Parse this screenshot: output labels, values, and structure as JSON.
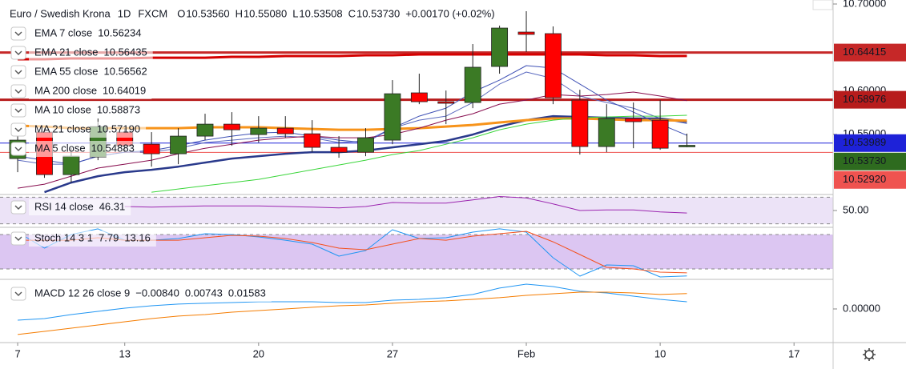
{
  "chart_data": [
    {
      "type": "candlestick",
      "title": "Euro / Swedish Krona",
      "interval": "1D",
      "source": "FXCM",
      "ohlc_legend": [
        {
          "key": "O",
          "value": "10.53560"
        },
        {
          "key": "H",
          "value": "10.55080"
        },
        {
          "key": "L",
          "value": "10.53508"
        },
        {
          "key": "C",
          "value": "10.53730"
        }
      ],
      "change": "+0.00170 (+0.02%)",
      "x": [
        0,
        1,
        2,
        3,
        4,
        5,
        6,
        7,
        8,
        9,
        10,
        11,
        12,
        13,
        14,
        15,
        16,
        17,
        18,
        19,
        20,
        21,
        22,
        23,
        24,
        25
      ],
      "open": [
        10.5221,
        10.5525,
        10.5036,
        10.5239,
        10.5525,
        10.5386,
        10.5276,
        10.5479,
        10.5617,
        10.5497,
        10.5571,
        10.5506,
        10.535,
        10.5294,
        10.5433,
        10.5977,
        10.5875,
        10.5866,
        10.6281,
        10.6677,
        10.6659,
        10.5894,
        10.5359,
        10.5682,
        10.5663,
        10.5356
      ],
      "high": [
        10.5571,
        10.5571,
        10.534,
        10.5682,
        10.5571,
        10.5525,
        10.5571,
        10.5737,
        10.5755,
        10.5709,
        10.5709,
        10.5663,
        10.5479,
        10.5571,
        10.6124,
        10.6198,
        10.6004,
        10.6539,
        10.6751,
        10.6917,
        10.6742,
        10.6013,
        10.5847,
        10.5866,
        10.5894,
        10.5508
      ],
      "low": [
        10.5064,
        10.4999,
        10.4944,
        10.5202,
        10.5294,
        10.5128,
        10.5156,
        10.5433,
        10.5368,
        10.5405,
        10.546,
        10.5294,
        10.523,
        10.5248,
        10.5386,
        10.5847,
        10.5617,
        10.5801,
        10.6198,
        10.6447,
        10.5847,
        10.5267,
        10.5294,
        10.534,
        10.5322,
        10.53508
      ],
      "close": [
        10.5433,
        10.5036,
        10.5248,
        10.5589,
        10.5368,
        10.5276,
        10.5479,
        10.5617,
        10.5552,
        10.5571,
        10.5506,
        10.535,
        10.5294,
        10.546,
        10.5967,
        10.5875,
        10.5857,
        10.6272,
        10.6723,
        10.665,
        10.5921,
        10.5359,
        10.5682,
        10.5645,
        10.534,
        10.5373
      ],
      "up_color": "#3b7a25",
      "down_color": "#ff0000",
      "series": [
        {
          "name": "EMA 7 close",
          "color": "#5c6bc0",
          "width": 1,
          "values": [
            10.5202,
            10.5156,
            10.5156,
            10.5248,
            10.5294,
            10.5294,
            10.534,
            10.5405,
            10.5433,
            10.546,
            10.5479,
            10.546,
            10.5405,
            10.5424,
            10.5571,
            10.5663,
            10.5709,
            10.5866,
            10.6078,
            10.6217,
            10.6143,
            10.594,
            10.5866,
            10.5801,
            10.5682,
            10.56234
          ]
        },
        {
          "name": "EMA 21 close",
          "color": "#2a3a8c",
          "width": 2.5,
          "values": [
            null,
            10.4834,
            10.4944,
            10.5018,
            10.5064,
            10.5092,
            10.5128,
            10.5175,
            10.5221,
            10.5248,
            10.5276,
            10.5294,
            10.5294,
            10.5313,
            10.535,
            10.5386,
            10.5424,
            10.5497,
            10.5589,
            10.5663,
            10.5709,
            10.57,
            10.5691,
            10.5682,
            10.5682,
            10.56435
          ]
        },
        {
          "name": "EMA 55 close",
          "color": "#f7931a",
          "width": 3,
          "values": [
            10.5599,
            10.5589,
            10.5571,
            10.5571,
            10.5571,
            10.5571,
            10.5571,
            10.5581,
            10.5581,
            10.5581,
            10.5571,
            10.5562,
            10.5552,
            10.5552,
            10.5562,
            10.5571,
            10.5589,
            10.5608,
            10.5636,
            10.5663,
            10.5682,
            10.5682,
            10.5673,
            10.5663,
            10.5663,
            10.56562
          ]
        },
        {
          "name": "MA 200 close",
          "color": "#d50000",
          "width": 3,
          "values": [
            10.6364,
            10.6364,
            10.6373,
            10.6373,
            10.6373,
            10.6382,
            10.6382,
            10.6382,
            10.6392,
            10.6392,
            10.6401,
            10.6401,
            10.6401,
            10.641,
            10.641,
            10.6419,
            10.6419,
            10.6419,
            10.6419,
            10.6419,
            10.6419,
            10.6419,
            10.641,
            10.641,
            10.6401,
            10.64019
          ]
        },
        {
          "name": "MA 10 close",
          "color": "#880e4f",
          "width": 1,
          "values": [
            10.488,
            10.4926,
            10.5018,
            10.5111,
            10.5156,
            10.5202,
            10.5276,
            10.534,
            10.5386,
            10.5433,
            10.546,
            10.5479,
            10.546,
            10.546,
            10.5497,
            10.5571,
            10.5663,
            10.5737,
            10.5847,
            10.5894,
            10.5958,
            10.594,
            10.5958,
            10.5986,
            10.594,
            10.58873
          ]
        },
        {
          "name": "MA 21 close",
          "color": "#3cd63c",
          "width": 1,
          "legend_label": "10.57190",
          "values": [
            null,
            null,
            null,
            null,
            null,
            10.4834,
            10.4871,
            10.4908,
            10.4944,
            10.4981,
            10.5036,
            10.5092,
            10.5147,
            10.5202,
            10.5267,
            10.5313,
            10.5386,
            10.546,
            10.5552,
            10.5617,
            10.5663,
            10.5691,
            10.57,
            10.5709,
            10.5709,
            10.5719
          ]
        },
        {
          "name": "MA 5 close",
          "color": "#3f51b5",
          "width": 1,
          "values": [
            10.5248,
            10.5202,
            10.5156,
            10.5248,
            10.5294,
            10.5313,
            10.5368,
            10.5433,
            10.5479,
            10.5516,
            10.5525,
            10.5479,
            10.5433,
            10.5405,
            10.5571,
            10.5709,
            10.5801,
            10.5986,
            10.6124,
            10.629,
            10.6263,
            10.6078,
            10.5894,
            10.5755,
            10.5617,
            10.54883
          ]
        }
      ],
      "price_lines": [
        {
          "value": 10.64415,
          "color": "#c62828",
          "width": 3
        },
        {
          "value": 10.58976,
          "color": "#b71c1c",
          "width": 3
        },
        {
          "value": 10.53989,
          "color": "#1e22d8",
          "width": 1
        },
        {
          "value": 10.5373,
          "label": "10.53730",
          "color": "#2e6b1f",
          "width": 0
        },
        {
          "value": 10.5292,
          "label": "10.52920",
          "color": "#ef5350",
          "width": 1
        }
      ],
      "ylim": [
        10.4807,
        10.7046
      ],
      "yticks": [
        {
          "value": 10.7,
          "label": "10.70000"
        },
        {
          "value": 10.6,
          "label": "10.60000"
        },
        {
          "value": 10.55,
          "label": "10.55000"
        }
      ],
      "xlim": [
        -0.66,
        30.46
      ],
      "xticks": [
        {
          "value": 0,
          "label": "7"
        },
        {
          "value": 4,
          "label": "13"
        },
        {
          "value": 9,
          "label": "20"
        },
        {
          "value": 14,
          "label": "27"
        },
        {
          "value": 19,
          "label": "Feb"
        },
        {
          "value": 24,
          "label": "10"
        },
        {
          "value": 29,
          "label": "17"
        }
      ]
    },
    {
      "type": "line",
      "title": "RSI 14 close",
      "series": [
        {
          "color": "#9c27b0",
          "values": [
            null,
            null,
            null,
            null,
            56,
            55,
            56,
            57,
            57,
            57,
            56,
            55,
            54,
            56,
            62,
            61,
            61,
            66,
            71,
            69,
            60,
            50,
            51,
            51,
            48,
            46.31
          ]
        }
      ],
      "band": [
        30,
        70
      ],
      "band_color": "#ece3f7",
      "ylim": [
        26,
        74
      ],
      "yticks": [
        {
          "value": 50,
          "label": "50.00"
        }
      ]
    },
    {
      "type": "line",
      "title": "Stoch 14 3 1",
      "series": [
        {
          "color": "#2196f3",
          "values": [
            84.2,
            56.3,
            80,
            90,
            70.2,
            70.2,
            73.0,
            81.4,
            80,
            75.8,
            70.2,
            63.3,
            42.3,
            52.1,
            88.4,
            73.0,
            74.4,
            84.2,
            90,
            84.2,
            39.6,
            7.5,
            27.0,
            25.6,
            6.1,
            7.79
          ]
        },
        {
          "color": "#f4511e",
          "values": [
            70.2,
            70.2,
            70.2,
            74.4,
            70.2,
            70.2,
            70.2,
            74.4,
            78.6,
            77.2,
            73.0,
            66.1,
            56.3,
            53.5,
            63.3,
            73.0,
            70.2,
            77.2,
            81.4,
            85.6,
            67.4,
            45.1,
            22.8,
            20,
            14.4,
            13.16
          ]
        }
      ],
      "band": [
        20,
        80
      ],
      "band_color": "#dcc6f2",
      "ylim": [
        3.3,
        91.2
      ],
      "yticks": []
    },
    {
      "type": "line",
      "title": "MACD 12 26 close 9",
      "histogram_label": "−0.00840",
      "histogram_color": "#e53935",
      "series": [
        {
          "color": "#2196f3",
          "values": [
            -0.0116,
            -0.0099,
            -0.0058,
            -0.0025,
            0.0008,
            0.0033,
            0.005,
            0.0058,
            0.0066,
            0.0074,
            0.0074,
            0.0074,
            0.0066,
            0.0066,
            0.0091,
            0.0099,
            0.0116,
            0.0149,
            0.0215,
            0.0256,
            0.0231,
            0.0182,
            0.0165,
            0.0132,
            0.0099,
            0.00743
          ]
        },
        {
          "color": "#f57c00",
          "values": [
            -0.0264,
            -0.0231,
            -0.0198,
            -0.0165,
            -0.0132,
            -0.0099,
            -0.0074,
            -0.0058,
            -0.0033,
            -0.0017,
            0,
            0.0017,
            0.0033,
            0.0041,
            0.0058,
            0.0074,
            0.0083,
            0.0099,
            0.0116,
            0.014,
            0.0157,
            0.0173,
            0.0173,
            0.0165,
            0.0149,
            0.01583
          ]
        }
      ],
      "ylim": [
        -0.0347,
        0.0297
      ],
      "yticks": [
        {
          "value": 0,
          "label": "0.00000"
        }
      ]
    }
  ]
}
